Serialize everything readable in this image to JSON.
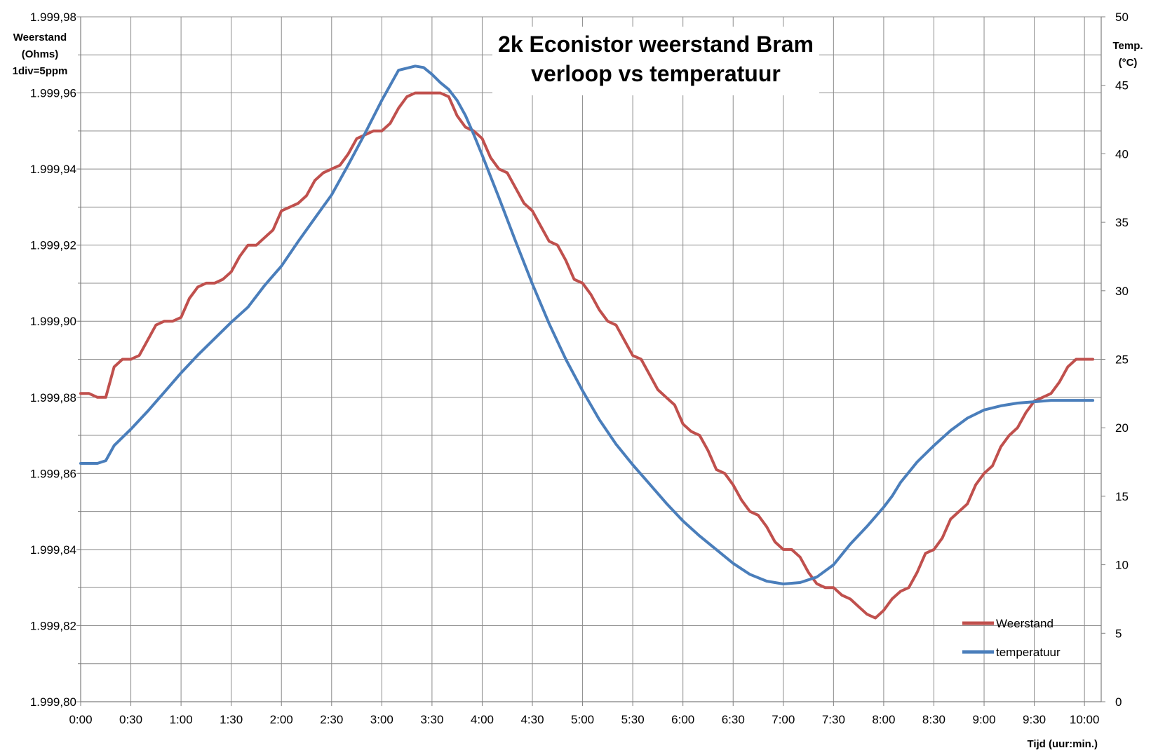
{
  "chart_data": {
    "type": "line",
    "title_lines": [
      "2k Econistor weerstand Bram",
      "verloop vs temperatuur"
    ],
    "ylabel_left_lines": [
      "Weerstand",
      "(Ohms)",
      "1div=5ppm"
    ],
    "ylabel_right_lines": [
      "Temp.",
      "(°C)"
    ],
    "xlabel": "Tijd (uur:min.)",
    "x_unit": "minutes",
    "xlim": [
      0,
      610
    ],
    "x_ticks": [
      0,
      30,
      60,
      90,
      120,
      150,
      180,
      210,
      240,
      270,
      300,
      330,
      360,
      390,
      420,
      450,
      480,
      510,
      540,
      570,
      600
    ],
    "x_tick_labels": [
      "0:00",
      "0:30",
      "1:00",
      "1:30",
      "2:00",
      "2:30",
      "3:00",
      "3:30",
      "4:00",
      "4:30",
      "5:00",
      "5:30",
      "6:00",
      "6:30",
      "7:00",
      "7:30",
      "8:00",
      "8:30",
      "9:00",
      "9:30",
      "10:00"
    ],
    "ylim_left": [
      1999.8,
      1999.98
    ],
    "y_left_ticks": [
      1999.8,
      1999.82,
      1999.84,
      1999.86,
      1999.88,
      1999.9,
      1999.92,
      1999.94,
      1999.96,
      1999.98
    ],
    "y_left_tick_labels": [
      "1.999,80",
      "1.999,82",
      "1.999,84",
      "1.999,86",
      "1.999,88",
      "1.999,90",
      "1.999,92",
      "1.999,94",
      "1.999,96",
      "1.999,98"
    ],
    "y_left_minor_step": 0.01,
    "ylim_right": [
      0,
      50
    ],
    "y_right_ticks": [
      0,
      5,
      10,
      15,
      20,
      25,
      30,
      35,
      40,
      45,
      50
    ],
    "y_right_tick_labels": [
      "0",
      "5",
      "10",
      "15",
      "20",
      "25",
      "30",
      "35",
      "40",
      "45",
      "50"
    ],
    "grid": true,
    "legend_position": "bottom-right",
    "series": [
      {
        "name": "Weerstand",
        "axis": "left",
        "color": "#c0504d",
        "x": [
          0,
          5,
          10,
          15,
          20,
          25,
          30,
          35,
          40,
          45,
          50,
          55,
          60,
          65,
          70,
          75,
          80,
          85,
          90,
          95,
          100,
          105,
          110,
          115,
          120,
          125,
          130,
          135,
          140,
          145,
          150,
          155,
          160,
          165,
          170,
          175,
          180,
          185,
          190,
          195,
          200,
          205,
          210,
          215,
          220,
          225,
          230,
          235,
          240,
          245,
          250,
          255,
          260,
          265,
          270,
          275,
          280,
          285,
          290,
          295,
          300,
          305,
          310,
          315,
          320,
          325,
          330,
          335,
          340,
          345,
          350,
          355,
          360,
          365,
          370,
          375,
          380,
          385,
          390,
          395,
          400,
          405,
          410,
          415,
          420,
          425,
          430,
          435,
          440,
          445,
          450,
          455,
          460,
          465,
          470,
          475,
          480,
          485,
          490,
          495,
          500,
          505,
          510,
          515,
          520,
          525,
          530,
          535,
          540,
          545,
          550,
          555,
          560,
          565,
          570,
          575,
          580,
          585,
          590,
          595,
          600,
          605
        ],
        "values": [
          1999.881,
          1999.881,
          1999.88,
          1999.88,
          1999.888,
          1999.89,
          1999.89,
          1999.891,
          1999.895,
          1999.899,
          1999.9,
          1999.9,
          1999.901,
          1999.906,
          1999.909,
          1999.91,
          1999.91,
          1999.911,
          1999.913,
          1999.917,
          1999.92,
          1999.92,
          1999.922,
          1999.924,
          1999.929,
          1999.93,
          1999.931,
          1999.933,
          1999.937,
          1999.939,
          1999.94,
          1999.941,
          1999.944,
          1999.948,
          1999.949,
          1999.95,
          1999.95,
          1999.952,
          1999.956,
          1999.959,
          1999.96,
          1999.96,
          1999.96,
          1999.96,
          1999.959,
          1999.954,
          1999.951,
          1999.95,
          1999.948,
          1999.943,
          1999.94,
          1999.939,
          1999.935,
          1999.931,
          1999.929,
          1999.925,
          1999.921,
          1999.92,
          1999.916,
          1999.911,
          1999.91,
          1999.907,
          1999.903,
          1999.9,
          1999.899,
          1999.895,
          1999.891,
          1999.89,
          1999.886,
          1999.882,
          1999.88,
          1999.878,
          1999.873,
          1999.871,
          1999.87,
          1999.866,
          1999.861,
          1999.86,
          1999.857,
          1999.853,
          1999.85,
          1999.849,
          1999.846,
          1999.842,
          1999.84,
          1999.84,
          1999.838,
          1999.834,
          1999.831,
          1999.83,
          1999.83,
          1999.828,
          1999.827,
          1999.825,
          1999.823,
          1999.822,
          1999.824,
          1999.827,
          1999.829,
          1999.83,
          1999.834,
          1999.839,
          1999.84,
          1999.843,
          1999.848,
          1999.85,
          1999.852,
          1999.857,
          1999.86,
          1999.862,
          1999.867,
          1999.87,
          1999.872,
          1999.876,
          1999.879,
          1999.88,
          1999.881,
          1999.884,
          1999.888,
          1999.89,
          1999.89,
          1999.89
        ]
      },
      {
        "name": "temperatuur",
        "axis": "right",
        "color": "#4a7ebb",
        "x": [
          0,
          10,
          15,
          20,
          30,
          40,
          50,
          60,
          70,
          80,
          90,
          100,
          110,
          120,
          130,
          140,
          150,
          160,
          170,
          180,
          190,
          200,
          205,
          210,
          215,
          220,
          225,
          230,
          235,
          240,
          250,
          260,
          270,
          280,
          290,
          300,
          310,
          320,
          330,
          340,
          350,
          360,
          370,
          380,
          390,
          400,
          410,
          420,
          430,
          440,
          450,
          460,
          470,
          475,
          480,
          485,
          490,
          500,
          510,
          520,
          530,
          540,
          550,
          560,
          570,
          580,
          590,
          600,
          605
        ],
        "values": [
          17.4,
          17.4,
          17.6,
          18.7,
          19.9,
          21.2,
          22.6,
          24.0,
          25.3,
          26.5,
          27.7,
          28.8,
          30.4,
          31.8,
          33.6,
          35.3,
          37.0,
          39.2,
          41.5,
          43.9,
          46.1,
          46.4,
          46.3,
          45.8,
          45.2,
          44.7,
          43.9,
          42.8,
          41.4,
          39.9,
          36.8,
          33.6,
          30.5,
          27.6,
          25.0,
          22.7,
          20.6,
          18.8,
          17.3,
          15.9,
          14.5,
          13.2,
          12.1,
          11.1,
          10.1,
          9.3,
          8.8,
          8.6,
          8.7,
          9.1,
          10.0,
          11.5,
          12.8,
          13.5,
          14.2,
          15.0,
          16.0,
          17.5,
          18.7,
          19.8,
          20.7,
          21.3,
          21.6,
          21.8,
          21.9,
          22.0,
          22.0,
          22.0,
          22.0
        ]
      }
    ]
  }
}
